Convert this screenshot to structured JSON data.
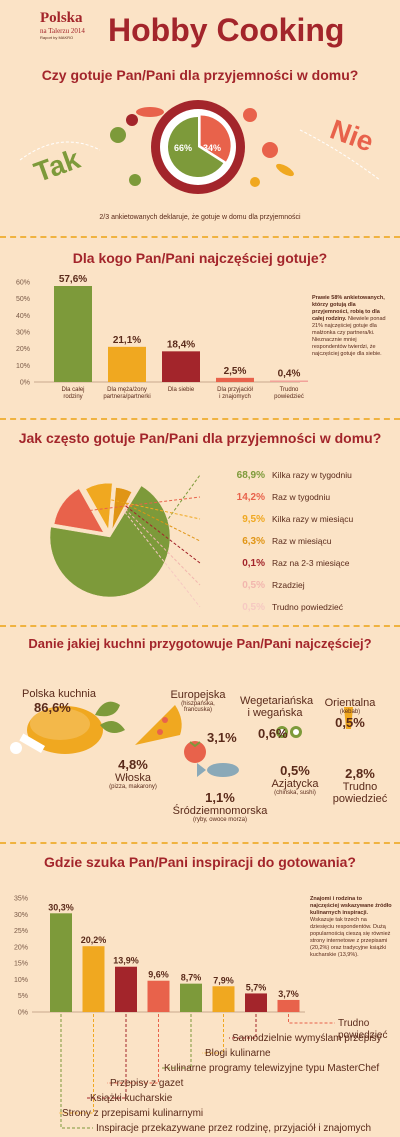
{
  "header": {
    "logo_top": "Polska",
    "logo_mid": "na Talerzu 2014",
    "logo_bottom": "Raport by MAKRO",
    "title": "Hobby Cooking"
  },
  "section1": {
    "title": "Czy gotuje Pan/Pani dla przyjemności w domu?",
    "tak": "Tak",
    "nie": "Nie",
    "caption": "2/3 ankietowanych deklaruje, że gotuje w domu dla przyjemności"
  },
  "section2": {
    "title": "Dla kogo Pan/Pani najczęściej gotuje?",
    "note_bold": "Prawie 58% ankietowanych, którzy gotują dla przyjemności, robią to dla całej rodziny.",
    "note": "Niewiele ponad 21% najczęściej gotuje dla małżonka czy partnera/ki. Nieznacznie mniej respondentów twierdzi, że najczęściej gotuje dla siebie."
  },
  "section3": {
    "title": "Jak często gotuje Pan/Pani dla przyjemności w domu?"
  },
  "section4": {
    "title": "Danie jakiej kuchni przygotowuje Pan/Pani najczęściej?",
    "items": [
      {
        "name": "Polska kuchnia",
        "value": "86,6%",
        "sub": ""
      },
      {
        "name": "Europejska",
        "value": "3,1%",
        "sub": "(hiszpańska, francuska)"
      },
      {
        "name": "Wegetariańska i wegańska",
        "value": "0,6%",
        "sub": ""
      },
      {
        "name": "Orientalna",
        "value": "0,5%",
        "sub": "(kebab)"
      },
      {
        "name": "Włoska",
        "value": "4,8%",
        "sub": "(pizza, makarony)"
      },
      {
        "name": "Azjatycka",
        "value": "0,5%",
        "sub": "(chińska, sushi)"
      },
      {
        "name": "Trudno powiedzieć",
        "value": "2,8%",
        "sub": ""
      },
      {
        "name": "Śródziemnomorska",
        "value": "1,1%",
        "sub": "(ryby, owoce morza)"
      }
    ]
  },
  "section5": {
    "title": "Gdzie szuka Pan/Pani inspiracji do gotowania?",
    "note_bold": "Znajomi i rodzina to najczęściej wskazywane źródło kulinarnych inspiracji.",
    "note": "Wskazuje tak trzech na dziesięciu respondentów. Dużą popularnością cieszą się również strony internetowe z przepisami (20,2%) oraz tradycyjne książki kucharskie (13,9%)."
  },
  "chart_data": [
    {
      "type": "pie",
      "title": "Czy gotuje Pan/Pani dla przyjemności w domu?",
      "categories": [
        "Tak",
        "Nie"
      ],
      "values": [
        66,
        34
      ],
      "labels": [
        "66%",
        "34%"
      ],
      "colors": [
        "#7d9a3a",
        "#e8624b"
      ]
    },
    {
      "type": "bar",
      "title": "Dla kogo Pan/Pani najczęściej gotuje?",
      "categories": [
        "Dla całej rodziny",
        "Dla męża/żony partnera/partnerki",
        "Dla siebie",
        "Dla przyjaciół i znajomych",
        "Trudno powiedzieć"
      ],
      "values": [
        57.6,
        21.1,
        18.4,
        2.5,
        0.4
      ],
      "labels": [
        "57,6%",
        "21,1%",
        "18,4%",
        "2,5%",
        "0,4%"
      ],
      "colors": [
        "#7d9a3a",
        "#f0a820",
        "#a3252b",
        "#e8624b",
        "#f2a29a"
      ],
      "yticks": [
        "0%",
        "10%",
        "20%",
        "30%",
        "40%",
        "50%",
        "60%"
      ],
      "ylim": [
        0,
        60
      ]
    },
    {
      "type": "pie",
      "title": "Jak często gotuje Pan/Pani dla przyjemności w domu?",
      "categories": [
        "Kilka razy w tygodniu",
        "Raz w tygodniu",
        "Kilka razy w miesiącu",
        "Raz w miesiącu",
        "Raz na 2-3 miesiące",
        "Rzadziej",
        "Trudno powiedzieć"
      ],
      "values": [
        68.9,
        14.2,
        9.5,
        6.3,
        0.1,
        0.5,
        0.5
      ],
      "labels": [
        "68,9%",
        "14,2%",
        "9,5%",
        "6,3%",
        "0,1%",
        "0,5%",
        "0,5%"
      ],
      "colors": [
        "#7d9a3a",
        "#e8624b",
        "#f0a820",
        "#e09515",
        "#a3252b",
        "#f2b6ae",
        "#f6c9c2"
      ]
    },
    {
      "type": "bar",
      "title": "Gdzie szuka Pan/Pani inspiracji do gotowania?",
      "categories": [
        "Inspiracje przekazywane przez rodzinę, przyjaciół i znajomych",
        "Strony z przepisami kulinarnymi",
        "Książki kucharskie",
        "Przepisy z gazet",
        "Kulinarne programy telewizyjne typu MasterChef",
        "Blogi kulinarne",
        "Samodzielnie wymyślam przepisy",
        "Trudno powiedzieć"
      ],
      "values": [
        30.3,
        20.2,
        13.9,
        9.6,
        8.7,
        7.9,
        5.7,
        3.7
      ],
      "labels": [
        "30,3%",
        "20,2%",
        "13,9%",
        "9,6%",
        "8,7%",
        "7,9%",
        "5,7%",
        "3,7%"
      ],
      "colors": [
        "#7d9a3a",
        "#f0a820",
        "#a3252b",
        "#e8624b",
        "#7d9a3a",
        "#f0a820",
        "#a3252b",
        "#e8624b"
      ],
      "yticks": [
        "0%",
        "5%",
        "10%",
        "15%",
        "20%",
        "25%",
        "30%",
        "35%"
      ],
      "ylim": [
        0,
        35
      ]
    }
  ]
}
